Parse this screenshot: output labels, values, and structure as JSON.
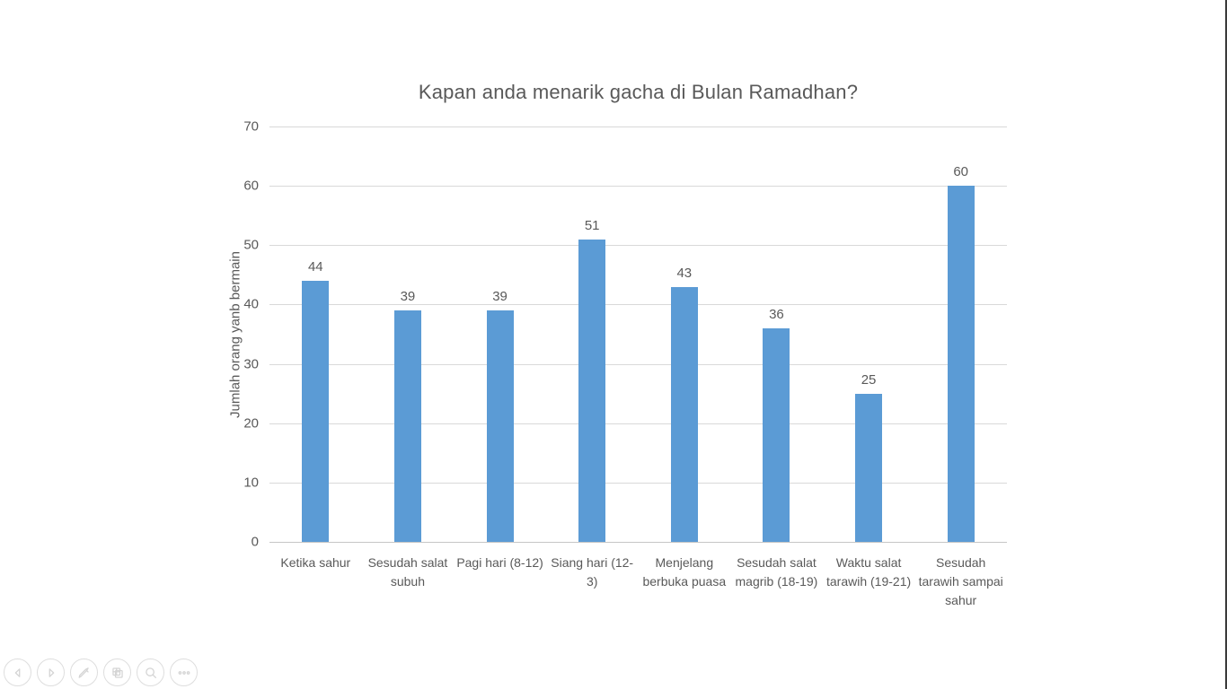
{
  "chart_data": {
    "type": "bar",
    "title": "Kapan anda menarik gacha di Bulan Ramadhan?",
    "categories": [
      "Ketika sahur",
      "Sesudah salat subuh",
      "Pagi hari (8-12)",
      "Siang hari (12-3)",
      "Menjelang berbuka puasa",
      "Sesudah salat magrib (18-19)",
      "Waktu salat tarawih (19-21)",
      "Sesudah tarawih sampai sahur"
    ],
    "values": [
      44,
      39,
      39,
      51,
      43,
      36,
      25,
      60
    ],
    "xlabel": "",
    "ylabel": "Jumlah orang yanb bermain",
    "ylim": [
      0,
      70
    ],
    "yticks": [
      0,
      10,
      20,
      30,
      40,
      50,
      60,
      70
    ],
    "grid": true,
    "legend": false,
    "data_labels": true
  },
  "colors": {
    "bar": "#5B9BD5",
    "gridline": "#D9D9D9",
    "axis_line": "#C6C6C6",
    "text": "#595959",
    "screen_edge": "#3A3A3A",
    "toolbar_stroke": "#D4D4D4"
  },
  "toolbar": {
    "buttons": [
      {
        "name": "previous-slide",
        "icon": "chevron-left-icon"
      },
      {
        "name": "next-slide",
        "icon": "chevron-right-icon"
      },
      {
        "name": "pen-tools",
        "icon": "pen-icon"
      },
      {
        "name": "see-all-slides",
        "icon": "slides-grid-icon"
      },
      {
        "name": "zoom-slide",
        "icon": "magnifier-icon"
      },
      {
        "name": "more-options",
        "icon": "ellipsis-icon"
      }
    ]
  }
}
